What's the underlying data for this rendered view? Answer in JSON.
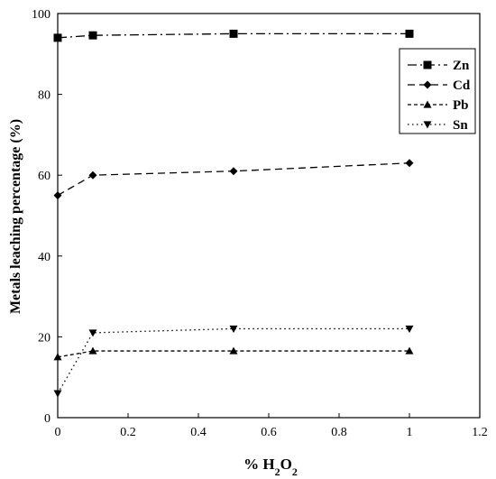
{
  "chart_data": {
    "type": "line",
    "title": "",
    "xlabel": "% H2O2",
    "ylabel": "Metals leaching percentage (%)",
    "xlim": [
      0,
      1.2
    ],
    "ylim": [
      0,
      100
    ],
    "xticks": [
      "0",
      "0.2",
      "0.4",
      "0.6",
      "0.8",
      "1",
      "1.2"
    ],
    "yticks": [
      "0",
      "20",
      "40",
      "60",
      "80",
      "100"
    ],
    "x": [
      0,
      0.1,
      0.5,
      1.0
    ],
    "legend_position": "top-right",
    "grid": false,
    "series": [
      {
        "name": "Zn",
        "values": [
          94,
          94.6,
          95,
          95
        ],
        "marker": "square",
        "dash": "dash-dot"
      },
      {
        "name": "Cd",
        "values": [
          55,
          60,
          61,
          63
        ],
        "marker": "diamond",
        "dash": "long-dash"
      },
      {
        "name": "Pb",
        "values": [
          15,
          16.5,
          16.5,
          16.5
        ],
        "marker": "triangle-up",
        "dash": "short-dash"
      },
      {
        "name": "Sn",
        "values": [
          6,
          21,
          22,
          22
        ],
        "marker": "triangle-down",
        "dash": "dotted"
      }
    ]
  }
}
